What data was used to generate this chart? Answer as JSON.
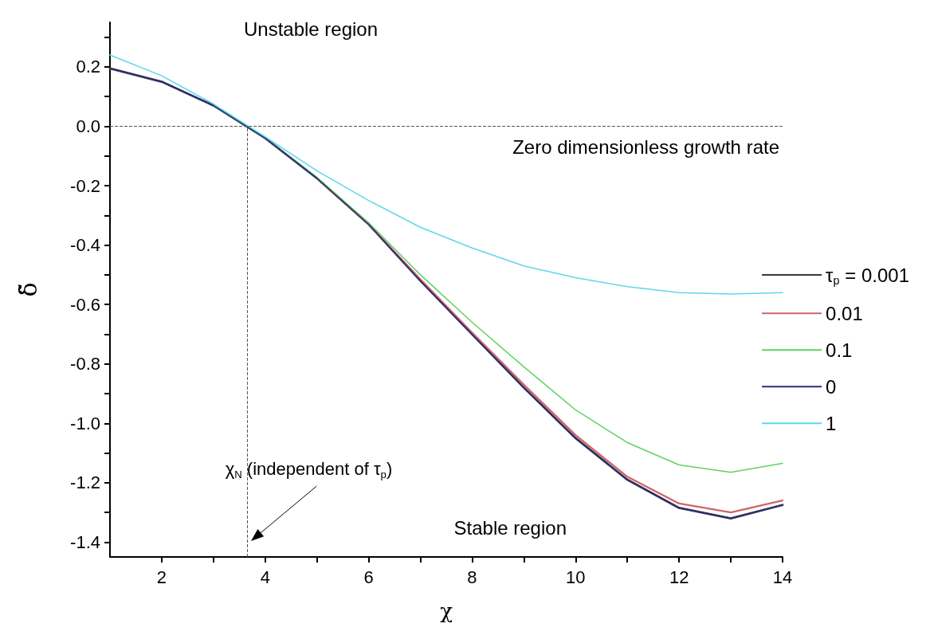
{
  "chart_data": {
    "type": "line",
    "xlabel": "χ",
    "ylabel": "δ̃",
    "x": [
      1,
      2,
      3,
      4,
      5,
      6,
      7,
      8,
      9,
      10,
      11,
      12,
      13,
      14
    ],
    "series": [
      {
        "name": "τ$_{p}$ = 0.001",
        "color": "#3a3a3a",
        "values": [
          0.195,
          0.15,
          0.07,
          -0.04,
          -0.175,
          -0.33,
          -0.52,
          -0.7,
          -0.88,
          -1.05,
          -1.19,
          -1.285,
          -1.32,
          -1.275
        ]
      },
      {
        "name": "0.01",
        "color": "#d06565",
        "values": [
          null,
          null,
          null,
          null,
          -0.175,
          -0.33,
          -0.515,
          -0.695,
          -0.87,
          -1.04,
          -1.18,
          -1.27,
          -1.3,
          -1.26
        ]
      },
      {
        "name": "0.1",
        "color": "#5fd35f",
        "values": [
          null,
          null,
          0.07,
          -0.04,
          -0.172,
          -0.325,
          -0.5,
          -0.66,
          -0.81,
          -0.955,
          -1.065,
          -1.14,
          -1.165,
          -1.135
        ]
      },
      {
        "name": "0",
        "color": "#2b2b85",
        "values": [
          0.195,
          0.15,
          0.07,
          -0.04,
          -0.175,
          -0.33,
          -0.52,
          -0.7,
          -0.88,
          -1.05,
          -1.19,
          -1.285,
          -1.32,
          -1.275
        ]
      },
      {
        "name": "1",
        "color": "#5cd8ea",
        "values": [
          0.24,
          0.17,
          0.075,
          -0.035,
          -0.15,
          -0.25,
          -0.34,
          -0.41,
          -0.47,
          -0.51,
          -0.54,
          -0.56,
          -0.565,
          -0.56
        ]
      }
    ],
    "xlim": [
      1,
      14
    ],
    "xticks": [
      2,
      {
        "value": 3,
        "label": null
      },
      4,
      {
        "value": 5,
        "label": null
      },
      6,
      {
        "value": 7,
        "label": null
      },
      8,
      {
        "value": 9,
        "label": null
      },
      10,
      {
        "value": 11,
        "label": null
      },
      12,
      {
        "value": 13,
        "label": null
      },
      14
    ],
    "ylim": [
      -1.45,
      0.35
    ],
    "yticks": [
      {
        "value": 0.3,
        "label": null
      },
      {
        "value": 0.2,
        "label": "0.2"
      },
      {
        "value": 0.1,
        "label": null
      },
      {
        "value": 0,
        "label": "0.0"
      },
      {
        "value": -0.1,
        "label": null
      },
      {
        "value": -0.2,
        "label": "-0.2"
      },
      {
        "value": -0.3,
        "label": null
      },
      {
        "value": -0.4,
        "label": "-0.4"
      },
      {
        "value": -0.5,
        "label": null
      },
      {
        "value": -0.6,
        "label": "-0.6"
      },
      {
        "value": -0.7,
        "label": null
      },
      {
        "value": -0.8,
        "label": "-0.8"
      },
      {
        "value": -0.9,
        "label": null
      },
      {
        "value": -1.0,
        "label": "-1.0"
      },
      {
        "value": -1.1,
        "label": null
      },
      {
        "value": -1.2,
        "label": "-1.2"
      },
      {
        "value": -1.3,
        "label": null
      },
      {
        "value": -1.4,
        "label": "-1.4"
      }
    ],
    "ref_lines": [
      {
        "axis": "y",
        "value": 0,
        "label": "Zero dimensionless growth rate",
        "color": "#555555",
        "line_style": "dashed"
      },
      {
        "axis": "x",
        "value": 3.65,
        "label": "χ$_{N}$ (independent of τ$_{p}$)",
        "color": "#555555",
        "line_style": "dashed"
      }
    ],
    "annotations": [
      "Unstable region",
      "Stable region"
    ],
    "legend": "right",
    "marker": "none",
    "line_style": "solid",
    "grid": false
  }
}
